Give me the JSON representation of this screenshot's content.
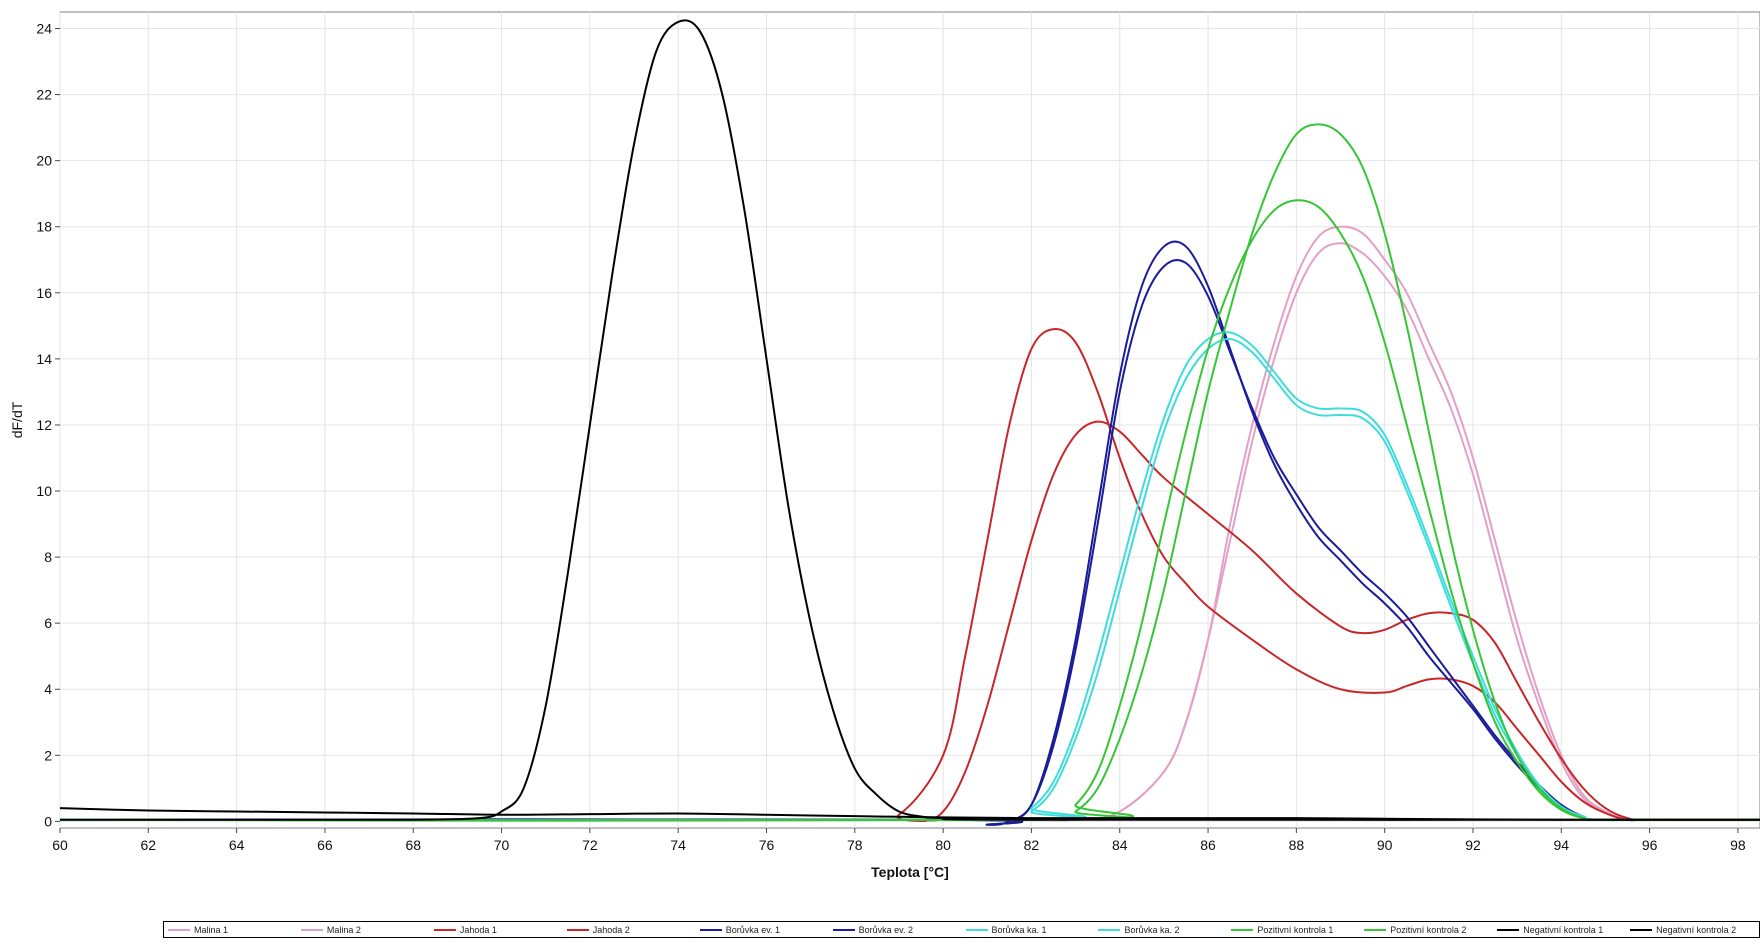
{
  "chart_data": {
    "type": "line",
    "xlabel": "Teplota [°C]",
    "ylabel": "dF/dT",
    "xlim": [
      60,
      98.5
    ],
    "ylim": [
      -0.2,
      24.5
    ],
    "xticks": [
      60,
      62,
      64,
      66,
      68,
      70,
      72,
      74,
      76,
      78,
      80,
      82,
      84,
      86,
      88,
      90,
      92,
      94,
      96,
      98
    ],
    "yticks": [
      0,
      2,
      4,
      6,
      8,
      10,
      12,
      14,
      16,
      18,
      20,
      22,
      24
    ],
    "grid": true,
    "legend_position": "bottom",
    "series": [
      {
        "name": "Malina 1",
        "color": "#e3a0c6",
        "x": [
          60,
          80,
          83,
          84,
          85,
          85.5,
          86,
          86.5,
          87,
          87.5,
          88,
          88.5,
          89,
          89.5,
          90,
          90.5,
          91,
          91.5,
          92,
          92.5,
          93,
          93.5,
          94,
          94.5,
          95,
          95.5,
          96,
          98.5
        ],
        "y": [
          0.05,
          0.05,
          0.05,
          0.3,
          1.5,
          3,
          5.5,
          8.5,
          11.5,
          14,
          16,
          17.2,
          17.5,
          17.2,
          16.5,
          15.5,
          14,
          12.5,
          10.5,
          8,
          5.5,
          3.5,
          1.8,
          0.7,
          0.25,
          0.05,
          0.05,
          0.05
        ]
      },
      {
        "name": "Malina 2",
        "color": "#e3a0c6",
        "x": [
          60,
          80,
          83,
          84,
          85,
          85.5,
          86,
          86.5,
          87,
          87.5,
          88,
          88.5,
          89,
          89.5,
          90,
          90.5,
          91,
          91.5,
          92,
          92.5,
          93,
          93.5,
          94,
          94.5,
          95,
          95.5,
          96,
          98.5
        ],
        "y": [
          0.05,
          0.05,
          0.05,
          0.3,
          1.5,
          3,
          5.5,
          9,
          12,
          14.5,
          16.5,
          17.7,
          18,
          17.8,
          17,
          16,
          14.5,
          13,
          11,
          8.5,
          6,
          3.8,
          2,
          0.8,
          0.3,
          0.05,
          0.05,
          0.05
        ]
      },
      {
        "name": "Jahoda 1",
        "color": "#c8272a",
        "x": [
          60,
          78,
          79,
          80,
          80.5,
          81,
          81.5,
          82,
          82.5,
          83,
          83.5,
          84,
          84.5,
          85,
          85.5,
          86,
          87,
          88,
          89,
          90,
          90.5,
          91,
          91.5,
          92,
          92.5,
          93,
          93.5,
          94,
          94.5,
          95,
          95.5,
          96,
          98.5
        ],
        "y": [
          0.05,
          0.05,
          0.2,
          2,
          5,
          8.5,
          12,
          14.3,
          14.9,
          14.5,
          13,
          11,
          9.3,
          8,
          7.2,
          6.5,
          5.5,
          4.6,
          4,
          3.9,
          4.1,
          4.3,
          4.3,
          4.1,
          3.6,
          2.8,
          2,
          1.2,
          0.6,
          0.25,
          0.05,
          0.05,
          0.05
        ]
      },
      {
        "name": "Jahoda 2",
        "color": "#c8272a",
        "x": [
          60,
          78,
          79.5,
          80,
          80.5,
          81,
          81.5,
          82,
          82.5,
          83,
          83.5,
          84,
          84.5,
          85,
          86,
          87,
          88,
          89,
          89.5,
          90,
          90.5,
          91,
          91.5,
          92,
          92.5,
          93,
          93.5,
          94,
          94.5,
          95,
          95.5,
          96,
          98.5
        ],
        "y": [
          0.05,
          0.05,
          0.05,
          0.3,
          1.5,
          3.5,
          6,
          8.5,
          10.5,
          11.7,
          12.1,
          11.8,
          11.1,
          10.4,
          9.3,
          8.2,
          6.9,
          5.9,
          5.7,
          5.8,
          6.1,
          6.3,
          6.3,
          6.1,
          5.4,
          4.2,
          3,
          1.9,
          1,
          0.4,
          0.1,
          0.05,
          0.05
        ]
      },
      {
        "name": "Borůvka ev. 1",
        "color": "#1a1c9a",
        "x": [
          60,
          80,
          81,
          81.5,
          82,
          82.5,
          83,
          83.5,
          84,
          84.5,
          85,
          85.5,
          86,
          86.5,
          87,
          87.5,
          88,
          88.5,
          89,
          89.5,
          90,
          90.5,
          91,
          91.5,
          92,
          92.5,
          93,
          93.5,
          94,
          94.5,
          95,
          98.5
        ],
        "y": [
          0.05,
          0.05,
          -0.1,
          0,
          0.5,
          2.5,
          5.5,
          9.5,
          13.5,
          16.2,
          17.4,
          17.4,
          16.2,
          14.3,
          12.4,
          10.8,
          9.6,
          8.6,
          7.9,
          7.2,
          6.6,
          5.9,
          5,
          4.2,
          3.4,
          2.5,
          1.7,
          1,
          0.4,
          0.1,
          0.05,
          0.05
        ]
      },
      {
        "name": "Borůvka ev. 2",
        "color": "#1a1c9a",
        "x": [
          60,
          80,
          81,
          81.5,
          82,
          82.5,
          83,
          83.5,
          84,
          84.5,
          85,
          85.5,
          86,
          86.5,
          87,
          87.5,
          88,
          88.5,
          89,
          89.5,
          90,
          90.5,
          91,
          91.5,
          92,
          92.5,
          93,
          93.5,
          94,
          94.5,
          95,
          98.5
        ],
        "y": [
          0.05,
          0.05,
          -0.1,
          0,
          0.5,
          2.3,
          5.2,
          9,
          13,
          15.6,
          16.8,
          16.9,
          15.9,
          14.2,
          12.5,
          11,
          9.9,
          8.9,
          8.2,
          7.5,
          6.9,
          6.2,
          5.3,
          4.4,
          3.5,
          2.6,
          1.8,
          1.1,
          0.5,
          0.15,
          0.05,
          0.05
        ]
      },
      {
        "name": "Borůvka ka. 1",
        "color": "#3fdcdc",
        "x": [
          60,
          81.5,
          82,
          82.5,
          83,
          83.5,
          84,
          84.5,
          85,
          85.5,
          86,
          86.5,
          87,
          87.5,
          88,
          88.5,
          89,
          89.5,
          90,
          90.5,
          91,
          91.5,
          92,
          92.5,
          93,
          93.5,
          94,
          94.5,
          95,
          98.5
        ],
        "y": [
          0.05,
          0.05,
          0.3,
          1,
          2.5,
          4.5,
          7,
          9.5,
          11.8,
          13.4,
          14.3,
          14.6,
          14.2,
          13.4,
          12.6,
          12.3,
          12.3,
          12.2,
          11.5,
          10,
          8.3,
          6.5,
          4.8,
          3.2,
          2,
          1,
          0.4,
          0.15,
          0.05,
          0.05
        ]
      },
      {
        "name": "Borůvka ka. 2",
        "color": "#3fdcdc",
        "x": [
          60,
          81.5,
          82,
          82.5,
          83,
          83.5,
          84,
          84.5,
          85,
          85.5,
          86,
          86.5,
          87,
          87.5,
          88,
          88.5,
          89,
          89.5,
          90,
          90.5,
          91,
          91.5,
          92,
          92.5,
          93,
          93.5,
          94,
          94.5,
          95,
          98.5
        ],
        "y": [
          0.05,
          0.05,
          0.4,
          1.2,
          2.8,
          5,
          7.5,
          10,
          12.2,
          13.8,
          14.6,
          14.8,
          14.4,
          13.6,
          12.8,
          12.5,
          12.5,
          12.4,
          11.7,
          10.2,
          8.5,
          6.7,
          5,
          3.4,
          2.1,
          1.1,
          0.45,
          0.15,
          0.05,
          0.05
        ]
      },
      {
        "name": "Pozitivní kontrola 1",
        "color": "#35c635",
        "x": [
          60,
          82.5,
          83,
          83.5,
          84,
          84.5,
          85,
          85.5,
          86,
          86.5,
          87,
          87.5,
          88,
          88.5,
          89,
          89.5,
          90,
          90.5,
          91,
          91.5,
          92,
          92.5,
          93,
          93.5,
          94,
          94.5,
          95,
          98.5
        ],
        "y": [
          0.05,
          0.05,
          0.3,
          1,
          2.5,
          4.5,
          7,
          10,
          13,
          15.5,
          17.8,
          19.6,
          20.8,
          21.1,
          20.8,
          19.8,
          17.8,
          15,
          11.8,
          8.5,
          5.8,
          3.6,
          2,
          1,
          0.4,
          0.1,
          0.05,
          0.05
        ]
      },
      {
        "name": "Pozitivní kontrola 2",
        "color": "#35c635",
        "x": [
          60,
          82.5,
          83,
          83.5,
          84,
          84.5,
          85,
          85.5,
          86,
          86.5,
          87,
          87.5,
          88,
          88.5,
          89,
          89.5,
          90,
          90.5,
          91,
          91.5,
          92,
          92.5,
          93,
          93.5,
          94,
          94.5,
          95,
          98.5
        ],
        "y": [
          0.05,
          0.05,
          0.5,
          1.5,
          3.5,
          6,
          9,
          11.8,
          14.3,
          16.2,
          17.6,
          18.5,
          18.8,
          18.6,
          17.8,
          16.5,
          14.5,
          12,
          9.5,
          7,
          4.8,
          3,
          1.8,
          0.9,
          0.35,
          0.1,
          0.05,
          0.05
        ]
      },
      {
        "name": "Negativní kontrola 1",
        "color": "#000000",
        "x": [
          60,
          62,
          64,
          66,
          68,
          69.5,
          70,
          70.5,
          71,
          71.5,
          72,
          72.5,
          73,
          73.5,
          74,
          74.5,
          75,
          75.5,
          76,
          76.5,
          77,
          77.5,
          78,
          78.5,
          79,
          79.5,
          80,
          82,
          98.5
        ],
        "y": [
          0.05,
          0.05,
          0.05,
          0.05,
          0.05,
          0.1,
          0.3,
          1,
          3.5,
          7.5,
          12,
          16.5,
          20.5,
          23.3,
          24.2,
          23.9,
          22,
          18.5,
          14,
          9.5,
          6,
          3.4,
          1.6,
          0.8,
          0.3,
          0.15,
          0.1,
          0.05,
          0.05
        ]
      },
      {
        "name": "Negativní kontrola 2",
        "color": "#000000",
        "x": [
          60,
          62,
          64,
          66,
          68,
          70,
          72,
          74,
          76,
          78,
          80,
          82,
          84,
          86,
          88,
          90,
          92,
          94,
          96,
          98.5
        ],
        "y": [
          0.4,
          0.33,
          0.3,
          0.27,
          0.24,
          0.2,
          0.22,
          0.24,
          0.2,
          0.16,
          0.12,
          0.1,
          0.1,
          0.1,
          0.1,
          0.08,
          0.06,
          0.05,
          0.05,
          0.05
        ]
      }
    ]
  }
}
